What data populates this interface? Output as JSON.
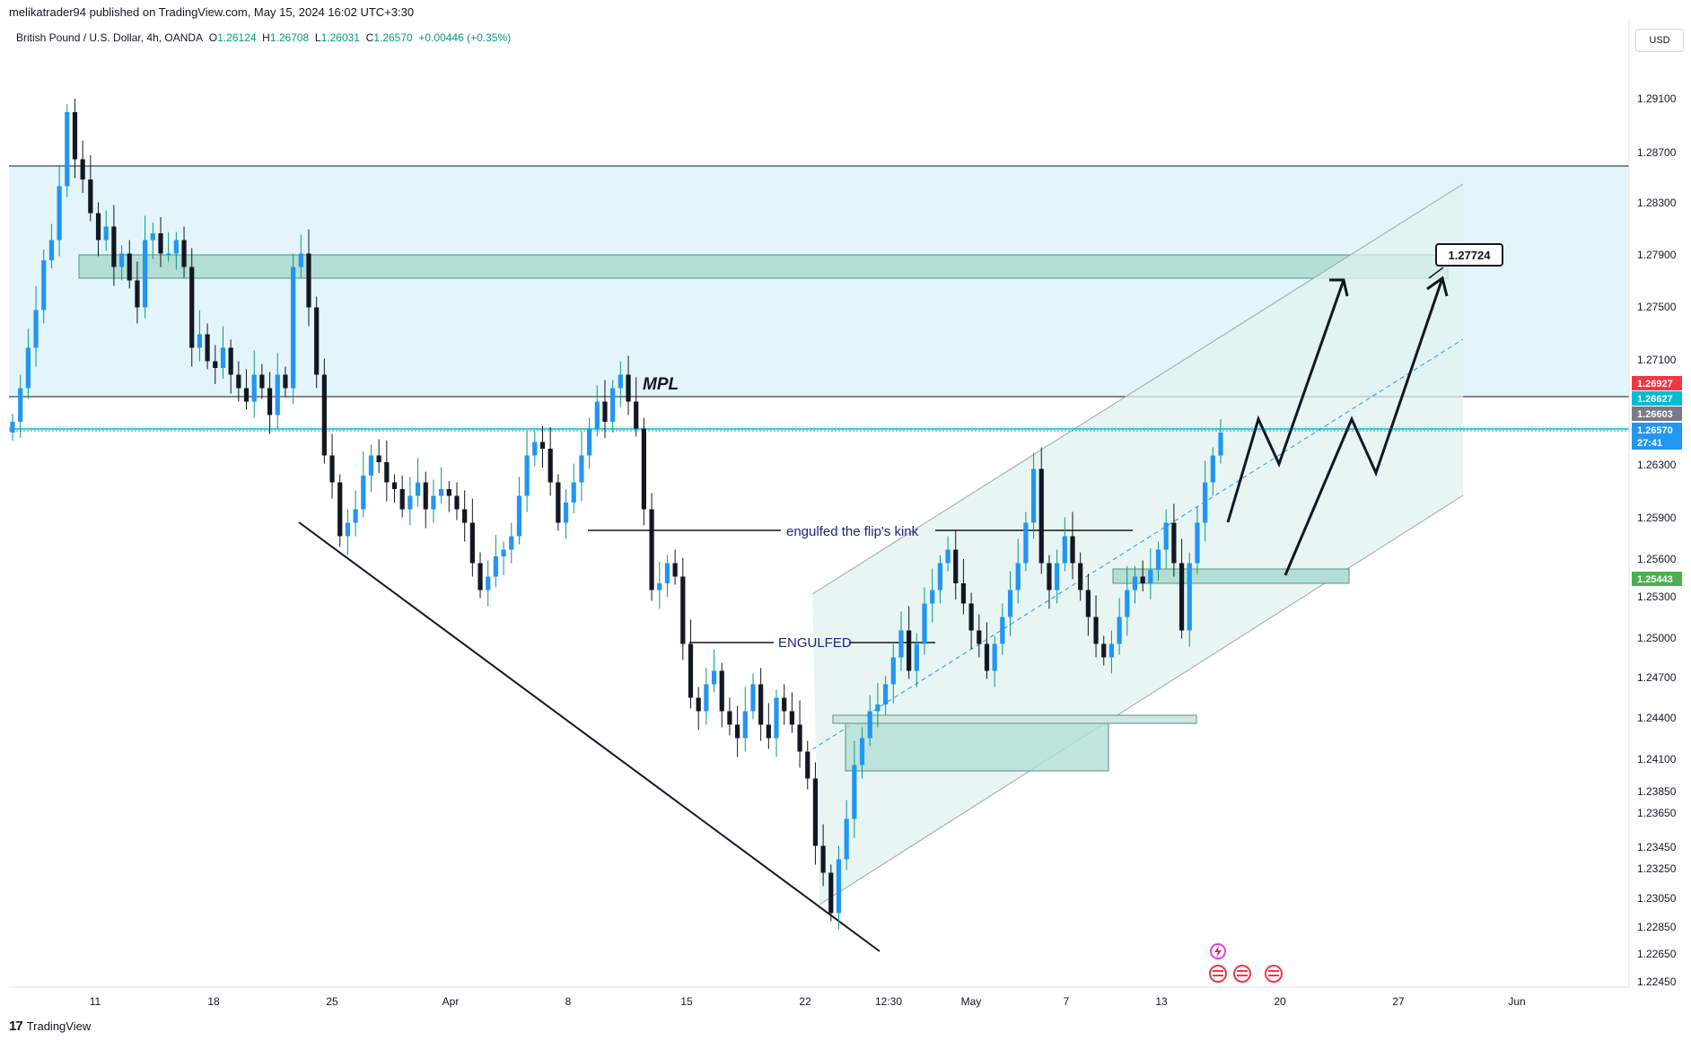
{
  "header": {
    "publisher": "melikatrader94 published on TradingView.com, May 15, 2024 16:02 UTC+3:30"
  },
  "symbol": {
    "name": "British Pound / U.S. Dollar, 4h, OANDA",
    "open_label": "O",
    "open": "1.26124",
    "high_label": "H",
    "high": "1.26708",
    "low_label": "L",
    "low": "1.26031",
    "close_label": "C",
    "close": "1.26570",
    "change": "+0.00446 (+0.35%)"
  },
  "currency": "USD",
  "footer": {
    "logo": "17",
    "brand": "TradingView"
  },
  "colors": {
    "up": "#089981",
    "down": "#131722",
    "candle_accent": "#2196f3",
    "zone": "#e3f5fa",
    "zone_dark": "#b3ded6",
    "channel": "#e0f2ef"
  },
  "chart_data": {
    "type": "candlestick",
    "title": "",
    "ylim": [
      1.2245,
      1.2965
    ],
    "y_ticks": [
      "1.29100",
      "1.28700",
      "1.28300",
      "1.27900",
      "1.27500",
      "1.27100",
      "1.26300",
      "1.25900",
      "1.25600",
      "1.25300",
      "1.25000",
      "1.24700",
      "1.24400",
      "1.24100",
      "1.23850",
      "1.23650",
      "1.23450",
      "1.23250",
      "1.23050",
      "1.22850",
      "1.22650",
      "1.22450"
    ],
    "x_ticks": [
      "11",
      "18",
      "25",
      "Apr",
      "8",
      "15",
      "22",
      "12:30",
      "May",
      "7",
      "13",
      "20",
      "27",
      "Jun"
    ],
    "price_tags": [
      {
        "value": "1.26927",
        "color": "#f23645"
      },
      {
        "value": "1.26627",
        "color": "#00bcd4"
      },
      {
        "value": "1.26603",
        "color": "#787b86"
      },
      {
        "value": "1.26570",
        "color": "#2196f3",
        "countdown": "27:41"
      },
      {
        "value": "1.25443",
        "color": "#4caf50"
      }
    ],
    "annotations": {
      "mpl": "MPL",
      "flip_kink": "engulfed the flip's kink",
      "engulfed": "ENGULFED",
      "target": "1.27724"
    },
    "event_icons": [
      "lightning-icon",
      "us-flag-icon",
      "us-flag-icon",
      "us-flag-icon"
    ],
    "closes": [
      1.2665,
      1.269,
      1.272,
      1.2748,
      1.2785,
      1.28,
      1.284,
      1.2895,
      1.286,
      1.2845,
      1.282,
      1.28,
      1.281,
      1.278,
      1.279,
      1.277,
      1.275,
      1.28,
      1.2805,
      1.279,
      1.279,
      1.28,
      1.278,
      1.272,
      1.273,
      1.271,
      1.2705,
      1.272,
      1.27,
      1.269,
      1.268,
      1.27,
      1.269,
      1.267,
      1.27,
      1.269,
      1.278,
      1.279,
      1.275,
      1.27,
      1.264,
      1.262,
      1.258,
      1.259,
      1.26,
      1.2625,
      1.264,
      1.2635,
      1.262,
      1.2615,
      1.26,
      1.261,
      1.262,
      1.26,
      1.261,
      1.2615,
      1.261,
      1.26,
      1.259,
      1.256,
      1.254,
      1.255,
      1.2565,
      1.257,
      1.258,
      1.261,
      1.264,
      1.265,
      1.2645,
      1.262,
      1.259,
      1.2605,
      1.262,
      1.264,
      1.266,
      1.268,
      1.2665,
      1.269,
      1.27,
      1.268,
      1.266,
      1.26,
      1.254,
      1.2545,
      1.256,
      1.255,
      1.25,
      1.246,
      1.245,
      1.247,
      1.248,
      1.245,
      1.244,
      1.243,
      1.245,
      1.247,
      1.244,
      1.243,
      1.246,
      1.245,
      1.244,
      1.242,
      1.24,
      1.235,
      1.233,
      1.23,
      1.234,
      1.237,
      1.241,
      1.243,
      1.245,
      1.2455,
      1.247,
      1.249,
      1.251,
      1.248,
      1.25,
      1.253,
      1.254,
      1.256,
      1.257,
      1.2545,
      1.253,
      1.251,
      1.25,
      1.248,
      1.25,
      1.252,
      1.254,
      1.256,
      1.259,
      1.263,
      1.256,
      1.254,
      1.256,
      1.258,
      1.256,
      1.254,
      1.252,
      1.25,
      1.249,
      1.25,
      1.252,
      1.254,
      1.255,
      1.2545,
      1.2555,
      1.257,
      1.259,
      1.256,
      1.251,
      1.256,
      1.259,
      1.262,
      1.264,
      1.2657
    ]
  }
}
